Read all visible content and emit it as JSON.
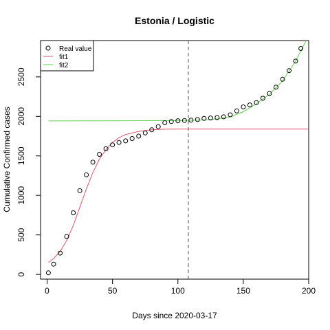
{
  "chart_data": {
    "type": "scatter",
    "title": "Estonia / Logistic",
    "xlabel": "Days since 2020-03-17",
    "ylabel": "Cumulative Confirmed cases",
    "xlim": [
      -5,
      200
    ],
    "ylim": [
      -60,
      2960
    ],
    "xticks": [
      "0",
      "50",
      "100",
      "150",
      "200"
    ],
    "yticks": [
      "0",
      "500",
      "1000",
      "1500",
      "2000",
      "2500"
    ],
    "vline_x": 108,
    "legend": {
      "position": "top-left",
      "entries": [
        "Real value",
        "fit1",
        "fit2"
      ]
    },
    "colors": {
      "points": "#000000",
      "fit1": "#DF536B",
      "fit2": "#61D04F",
      "vline": "#555555"
    },
    "real_value": {
      "name": "Real value",
      "x": [
        1,
        5,
        10,
        15,
        20,
        25,
        30,
        35,
        40,
        45,
        50,
        55,
        60,
        65,
        70,
        75,
        80,
        85,
        90,
        95,
        100,
        105,
        110,
        115,
        120,
        125,
        130,
        135,
        140,
        145,
        150,
        155,
        160,
        165,
        170,
        175,
        180,
        185,
        190,
        194
      ],
      "y": [
        20,
        130,
        270,
        480,
        780,
        1060,
        1260,
        1420,
        1520,
        1590,
        1640,
        1670,
        1690,
        1720,
        1750,
        1790,
        1830,
        1870,
        1920,
        1935,
        1945,
        1948,
        1952,
        1960,
        1975,
        1980,
        1985,
        1995,
        2020,
        2070,
        2120,
        2145,
        2175,
        2230,
        2290,
        2370,
        2470,
        2580,
        2700,
        2860
      ]
    },
    "fit1": {
      "name": "fit1",
      "x": [
        1,
        5,
        10,
        15,
        20,
        25,
        30,
        35,
        40,
        45,
        50,
        55,
        60,
        70,
        80,
        90,
        100,
        120,
        150,
        200
      ],
      "y": [
        150,
        200,
        290,
        430,
        620,
        850,
        1080,
        1290,
        1460,
        1580,
        1670,
        1730,
        1770,
        1810,
        1830,
        1838,
        1840,
        1840,
        1840,
        1840
      ]
    },
    "fit2": {
      "name": "fit2",
      "x": [
        1,
        40,
        80,
        100,
        110,
        120,
        130,
        140,
        150,
        160,
        170,
        180,
        190,
        198
      ],
      "y": [
        1943,
        1944,
        1946,
        1948,
        1950,
        1955,
        1968,
        1995,
        2060,
        2160,
        2280,
        2450,
        2700,
        2990
      ]
    }
  }
}
